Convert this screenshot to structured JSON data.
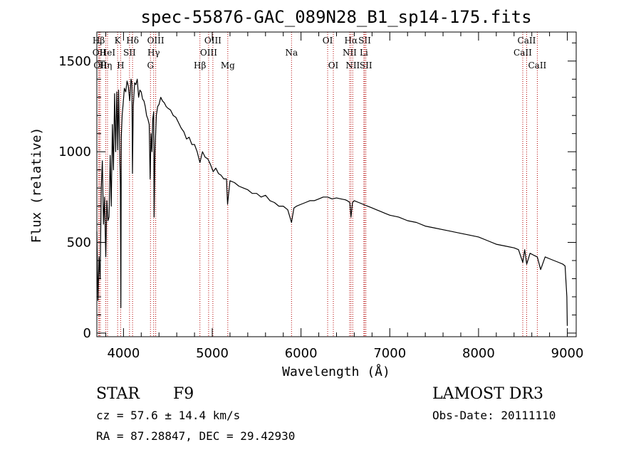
{
  "chart_data": {
    "type": "line",
    "title": "spec-55876-GAC_089N28_B1_sp14-175.fits",
    "xlabel": "Wavelength (Å)",
    "ylabel": "Flux (relative)",
    "xlim": [
      3700,
      9100
    ],
    "ylim": [
      -20,
      1660
    ],
    "xticks": [
      4000,
      5000,
      6000,
      7000,
      8000,
      9000
    ],
    "yticks": [
      0,
      500,
      1000,
      1500
    ],
    "x_tick_labels": [
      "4000",
      "5000",
      "6000",
      "7000",
      "8000",
      "9000"
    ],
    "y_tick_labels": [
      "0",
      "500",
      "1000",
      "1500"
    ],
    "grid": false,
    "series": [
      {
        "color": "#000000",
        "x": [
          3700,
          3712,
          3725,
          3737,
          3750,
          3762,
          3775,
          3787,
          3800,
          3812,
          3825,
          3837,
          3850,
          3862,
          3875,
          3887,
          3900,
          3912,
          3925,
          3935,
          3945,
          3955,
          3965,
          3970,
          3975,
          3985,
          3995,
          4010,
          4025,
          4040,
          4055,
          4070,
          4085,
          4095,
          4101,
          4110,
          4125,
          4140,
          4155,
          4170,
          4185,
          4200,
          4215,
          4230,
          4245,
          4260,
          4275,
          4290,
          4300,
          4310,
          4320,
          4330,
          4340,
          4345,
          4355,
          4370,
          4385,
          4400,
          4420,
          4440,
          4460,
          4480,
          4500,
          4530,
          4560,
          4590,
          4620,
          4650,
          4680,
          4710,
          4740,
          4770,
          4800,
          4830,
          4861,
          4890,
          4920,
          4950,
          4980,
          5010,
          5040,
          5070,
          5100,
          5130,
          5160,
          5172,
          5200,
          5250,
          5300,
          5350,
          5400,
          5450,
          5500,
          5550,
          5600,
          5650,
          5700,
          5750,
          5800,
          5850,
          5893,
          5920,
          5950,
          6000,
          6050,
          6100,
          6150,
          6200,
          6250,
          6300,
          6350,
          6400,
          6450,
          6500,
          6520,
          6550,
          6563,
          6580,
          6600,
          6650,
          6700,
          6750,
          6800,
          6850,
          6900,
          6950,
          7000,
          7100,
          7200,
          7300,
          7400,
          7500,
          7600,
          7700,
          7800,
          7900,
          8000,
          8100,
          8200,
          8300,
          8400,
          8450,
          8498,
          8520,
          8542,
          8580,
          8620,
          8662,
          8700,
          8750,
          8800,
          8850,
          8900,
          8950,
          8975,
          8995,
          9000
        ],
        "y": [
          560,
          180,
          420,
          300,
          800,
          950,
          600,
          750,
          420,
          730,
          620,
          640,
          980,
          700,
          1150,
          900,
          1320,
          1000,
          1330,
          1010,
          1340,
          1050,
          820,
          140,
          1080,
          1200,
          1260,
          1350,
          1330,
          1390,
          1360,
          1280,
          1400,
          1380,
          880,
          1250,
          1380,
          1370,
          1400,
          1300,
          1340,
          1330,
          1290,
          1280,
          1250,
          1200,
          1180,
          1150,
          850,
          1100,
          1000,
          1180,
          1220,
          640,
          1000,
          1200,
          1250,
          1260,
          1300,
          1280,
          1270,
          1250,
          1240,
          1230,
          1200,
          1190,
          1160,
          1130,
          1110,
          1070,
          1080,
          1040,
          1040,
          1000,
          940,
          1000,
          970,
          960,
          930,
          890,
          910,
          880,
          870,
          850,
          850,
          710,
          840,
          830,
          810,
          800,
          790,
          770,
          770,
          750,
          760,
          730,
          720,
          700,
          700,
          680,
          610,
          690,
          700,
          710,
          720,
          730,
          730,
          740,
          750,
          750,
          740,
          745,
          740,
          735,
          730,
          720,
          640,
          720,
          730,
          720,
          710,
          700,
          690,
          680,
          670,
          660,
          650,
          640,
          620,
          610,
          590,
          580,
          570,
          560,
          550,
          540,
          530,
          510,
          490,
          480,
          470,
          460,
          390,
          460,
          380,
          440,
          430,
          420,
          350,
          420,
          410,
          400,
          390,
          380,
          370,
          200,
          40
        ],
        "stroke_width": 1.2
      }
    ],
    "spectral_lines": [
      {
        "label": "Hβ",
        "wavelength": 3721,
        "row": 1
      },
      {
        "label": "OII",
        "wavelength": 3727,
        "row": 2
      },
      {
        "label": "OII",
        "wavelength": 3740,
        "row": 3
      },
      {
        "label": "Hη",
        "wavelength": 3800,
        "row": 3
      },
      {
        "label": "HeI",
        "wavelength": 3820,
        "row": 2
      },
      {
        "label": "K",
        "wavelength": 3934,
        "row": 1
      },
      {
        "label": "H",
        "wavelength": 3968,
        "row": 3
      },
      {
        "label": "SII",
        "wavelength": 4068,
        "row": 2
      },
      {
        "label": "Hδ",
        "wavelength": 4102,
        "row": 1
      },
      {
        "label": "OIII",
        "wavelength": 4363,
        "row": 1
      },
      {
        "label": "Hγ",
        "wavelength": 4340,
        "row": 2
      },
      {
        "label": "G",
        "wavelength": 4304,
        "row": 3
      },
      {
        "label": "Hβ",
        "wavelength": 4861,
        "row": 3
      },
      {
        "label": "OIII",
        "wavelength": 5007,
        "row": 1
      },
      {
        "label": "OIII",
        "wavelength": 4959,
        "row": 2
      },
      {
        "label": "Mg",
        "wavelength": 5175,
        "row": 3
      },
      {
        "label": "Na",
        "wavelength": 5893,
        "row": 2
      },
      {
        "label": "OI",
        "wavelength": 6300,
        "row": 1
      },
      {
        "label": "OI",
        "wavelength": 6364,
        "row": 3
      },
      {
        "label": "Hα",
        "wavelength": 6563,
        "row": 1
      },
      {
        "label": "NII",
        "wavelength": 6548,
        "row": 2
      },
      {
        "label": "NII",
        "wavelength": 6583,
        "row": 3
      },
      {
        "label": "SII",
        "wavelength": 6717,
        "row": 1
      },
      {
        "label": "Li",
        "wavelength": 6708,
        "row": 2
      },
      {
        "label": "SII",
        "wavelength": 6731,
        "row": 3
      },
      {
        "label": "CaII",
        "wavelength": 8542,
        "row": 1
      },
      {
        "label": "CaII",
        "wavelength": 8498,
        "row": 2
      },
      {
        "label": "CaII",
        "wavelength": 8662,
        "row": 3
      }
    ],
    "line_color": "#b30000"
  },
  "info": {
    "class": "STAR",
    "subclass": "F9",
    "survey": "LAMOST DR3",
    "cz": "cz = 57.6 ± 14.4 km/s",
    "obs_date": "Obs-Date: 20111110",
    "coords": "RA =  87.28847, DEC =  29.42930"
  }
}
